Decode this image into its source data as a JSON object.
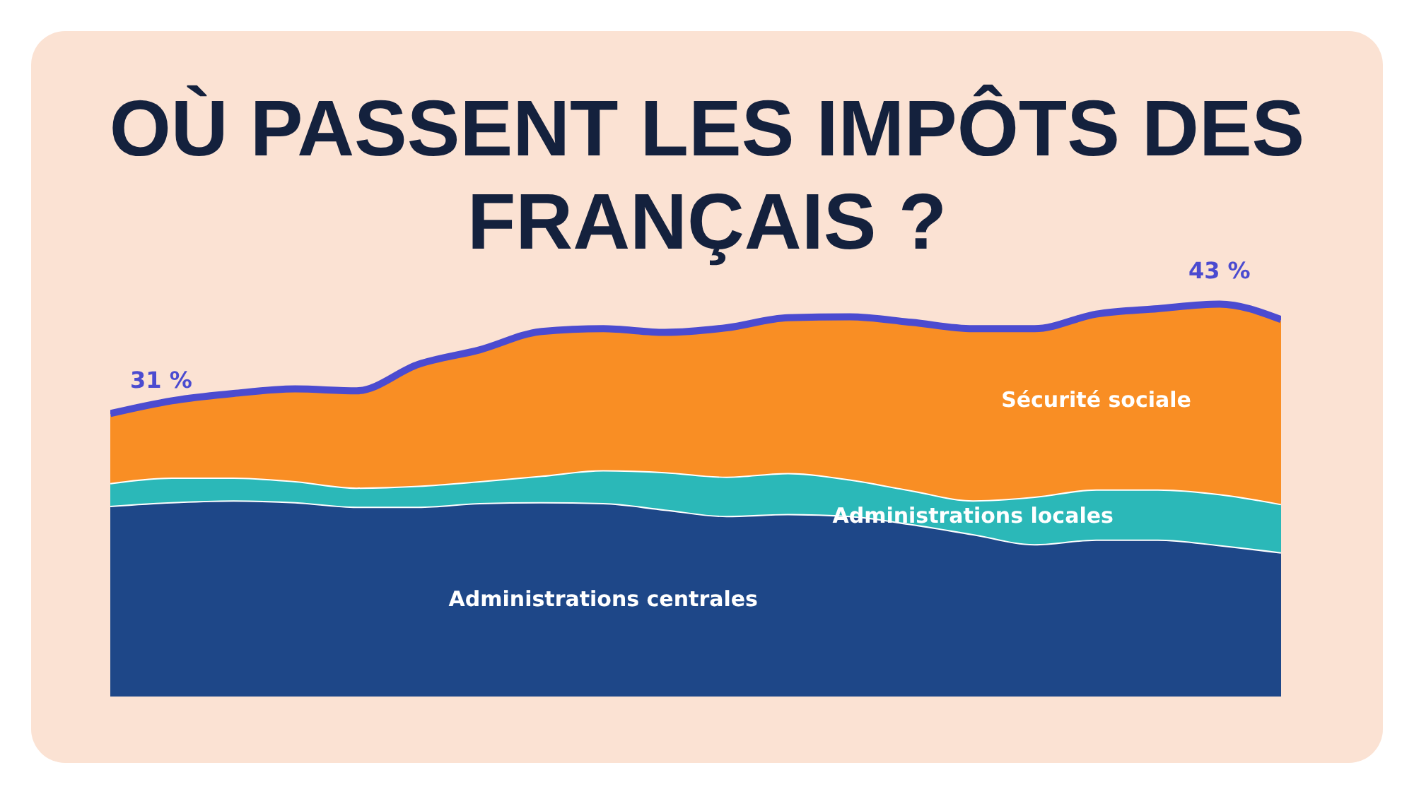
{
  "chart_data": {
    "type": "area",
    "title": "OÙ PASSENT LES IMPÔTS DES FRANÇAIS ?",
    "categories": [
      null,
      null,
      null,
      null,
      null,
      null,
      null,
      null,
      null,
      null,
      null,
      null,
      null,
      null,
      null,
      null,
      null,
      null,
      null,
      null
    ],
    "stacked": true,
    "tick_labels": false,
    "grid": false,
    "legend": false,
    "series": [
      {
        "name": "Administrations centrales",
        "color": "#1e4788",
        "values": [
          20.9,
          21.3,
          21.5,
          21.3,
          20.8,
          20.8,
          21.2,
          21.3,
          21.2,
          20.5,
          19.8,
          20.0,
          19.8,
          18.9,
          17.8,
          16.7,
          17.2,
          17.2,
          16.6,
          15.8
        ]
      },
      {
        "name": "Administrations locales",
        "color": "#2bb8b8",
        "values": [
          2.5,
          2.7,
          2.5,
          2.3,
          2.1,
          2.3,
          2.4,
          2.9,
          3.6,
          4.1,
          4.3,
          4.5,
          4.0,
          3.7,
          3.7,
          5.2,
          5.5,
          5.5,
          5.6,
          5.3
        ]
      },
      {
        "name": "Sécurité sociale",
        "color": "#f98e24",
        "values": [
          7.6,
          8.4,
          9.2,
          10.1,
          10.6,
          13.3,
          14.4,
          15.8,
          15.5,
          15.3,
          16.3,
          17.0,
          17.8,
          18.4,
          18.8,
          18.4,
          19.2,
          19.8,
          20.8,
          20.2
        ]
      },
      {
        "type": "line",
        "color": "#4b4bd0",
        "values": [
          31,
          32.4,
          33.2,
          33.7,
          33.5,
          36.4,
          38.0,
          40.0,
          40.3,
          39.9,
          40.4,
          41.5,
          41.6,
          41.0,
          40.3,
          40.3,
          41.9,
          42.5,
          43,
          41.3
        ],
        "value_labels": [
          "31 %",
          null,
          null,
          null,
          null,
          null,
          null,
          null,
          null,
          null,
          null,
          null,
          null,
          null,
          null,
          null,
          null,
          null,
          "43 %",
          null
        ]
      }
    ]
  }
}
